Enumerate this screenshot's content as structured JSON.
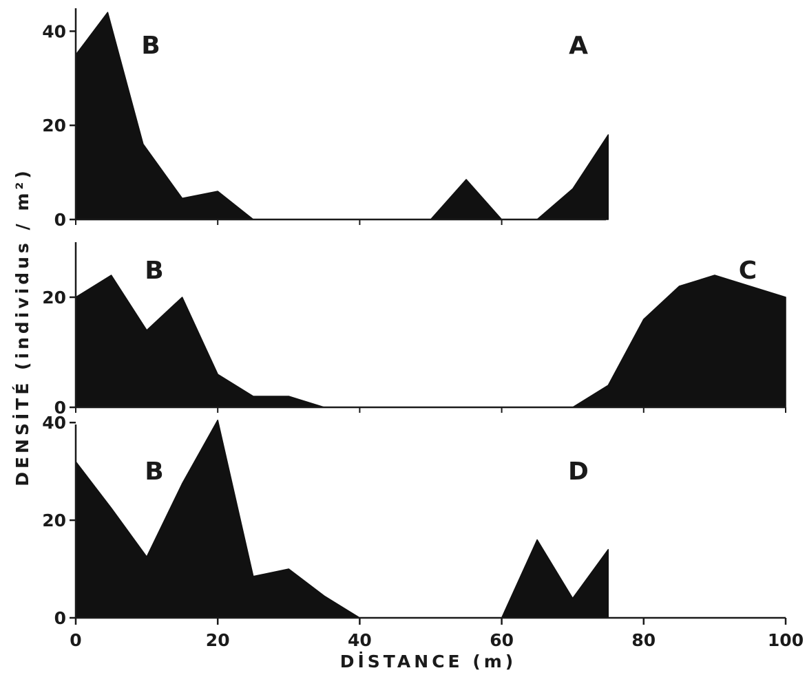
{
  "chart_data": {
    "type": "area",
    "xlabel": "DİSTANCE  (m)",
    "ylabel": "DENSİTÉ  (individus / m²)",
    "x_ticks": [
      0,
      20,
      40,
      60,
      80,
      100
    ],
    "xlim": [
      0,
      100
    ],
    "grid": false,
    "colors": {
      "fill": "#111111",
      "axis": "#1a1a1a"
    },
    "panels": [
      {
        "labels": [
          "B",
          "A"
        ],
        "y_ticks": [
          0,
          20,
          40
        ],
        "ylim": [
          0,
          44
        ],
        "x": [
          0,
          4.5,
          9.5,
          15,
          20,
          25,
          30,
          40,
          45,
          50,
          55,
          60,
          65,
          70,
          75
        ],
        "y": [
          35,
          44,
          16,
          4.5,
          6,
          0,
          0,
          0,
          0,
          0,
          8.5,
          0,
          0,
          6.5,
          18
        ]
      },
      {
        "labels": [
          "B",
          "C"
        ],
        "y_ticks": [
          0,
          20
        ],
        "ylim": [
          0,
          34
        ],
        "x": [
          0,
          5,
          10,
          15,
          20,
          25,
          30,
          35,
          40,
          60,
          70,
          75,
          80,
          85,
          90,
          95,
          100
        ],
        "y": [
          20,
          24,
          14,
          20,
          6,
          2,
          2,
          0,
          0,
          0,
          0,
          4,
          16,
          22,
          24,
          22,
          20
        ]
      },
      {
        "labels": [
          "B",
          "D"
        ],
        "y_ticks": [
          0,
          20,
          40
        ],
        "ylim": [
          0,
          42
        ],
        "x": [
          0,
          5,
          10,
          15,
          20,
          25,
          30,
          35,
          40,
          50,
          60,
          65,
          70,
          75
        ],
        "y": [
          32,
          22.5,
          12.5,
          27.5,
          40.5,
          8.5,
          10,
          4.5,
          0,
          0,
          0,
          16,
          4,
          14
        ]
      }
    ]
  }
}
